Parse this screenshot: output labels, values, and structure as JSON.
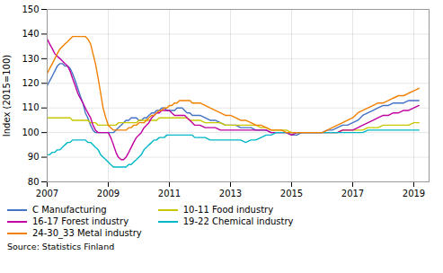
{
  "chart_data": {
    "type": "line",
    "ylabel": "Index (2015=100)",
    "source": "Source: Statistics Finland",
    "xlim": [
      2007.0,
      2019.5
    ],
    "xticks": [
      2007,
      2009,
      2011,
      2013,
      2015,
      2017,
      2019
    ],
    "ylim": [
      80,
      150
    ],
    "yticks": [
      80,
      90,
      100,
      110,
      120,
      130,
      140,
      150
    ],
    "grid": true,
    "legend": "bottom",
    "x": [
      2007.0,
      2007.08,
      2007.17,
      2007.25,
      2007.33,
      2007.42,
      2007.5,
      2007.58,
      2007.67,
      2007.75,
      2007.83,
      2007.92,
      2008.0,
      2008.08,
      2008.17,
      2008.25,
      2008.33,
      2008.42,
      2008.5,
      2008.58,
      2008.67,
      2008.75,
      2008.83,
      2008.92,
      2009.0,
      2009.08,
      2009.17,
      2009.25,
      2009.33,
      2009.42,
      2009.5,
      2009.58,
      2009.67,
      2009.75,
      2009.83,
      2009.92,
      2010.0,
      2010.08,
      2010.17,
      2010.25,
      2010.33,
      2010.42,
      2010.5,
      2010.58,
      2010.67,
      2010.75,
      2010.83,
      2010.92,
      2011.0,
      2011.08,
      2011.17,
      2011.25,
      2011.33,
      2011.42,
      2011.5,
      2011.58,
      2011.67,
      2011.75,
      2011.83,
      2011.92,
      2012.0,
      2012.17,
      2012.33,
      2012.5,
      2012.67,
      2012.83,
      2013.0,
      2013.17,
      2013.33,
      2013.5,
      2013.67,
      2013.83,
      2014.0,
      2014.17,
      2014.33,
      2014.5,
      2014.67,
      2014.83,
      2015.0,
      2015.17,
      2015.33,
      2015.5,
      2015.67,
      2015.83,
      2016.0,
      2016.17,
      2016.33,
      2016.5,
      2016.67,
      2016.83,
      2017.0,
      2017.17,
      2017.33,
      2017.5,
      2017.67,
      2017.83,
      2018.0,
      2018.17,
      2018.33,
      2018.5,
      2018.67,
      2018.83,
      2019.0,
      2019.17
    ],
    "series": [
      {
        "name": "C Manufacturing",
        "color": "#4472c4",
        "values": [
          119,
          121,
          123,
          125,
          127,
          128,
          128,
          127,
          127,
          126,
          124,
          121,
          118,
          115,
          112,
          108,
          106,
          103,
          101,
          100,
          100,
          100,
          100,
          100,
          100,
          100,
          100,
          101,
          102,
          103,
          104,
          105,
          105,
          106,
          106,
          106,
          105,
          105,
          106,
          106,
          107,
          108,
          108,
          109,
          109,
          110,
          110,
          109,
          109,
          109,
          109,
          110,
          110,
          110,
          109,
          108,
          108,
          107,
          107,
          107,
          107,
          106,
          105,
          105,
          104,
          103,
          103,
          103,
          102,
          102,
          102,
          101,
          101,
          101,
          100,
          100,
          100,
          100,
          99,
          99,
          100,
          100,
          100,
          100,
          100,
          101,
          101,
          102,
          103,
          103,
          104,
          105,
          107,
          108,
          109,
          110,
          111,
          111,
          112,
          112,
          112,
          113,
          113,
          113
        ]
      },
      {
        "name": "10-11 Food industry",
        "color": "#c8c800",
        "values": [
          106,
          106,
          106,
          106,
          106,
          106,
          106,
          106,
          106,
          106,
          105,
          105,
          105,
          105,
          105,
          105,
          105,
          104,
          104,
          104,
          103,
          103,
          103,
          103,
          103,
          103,
          103,
          103,
          104,
          104,
          104,
          104,
          104,
          104,
          104,
          104,
          105,
          105,
          105,
          105,
          105,
          105,
          105,
          105,
          106,
          106,
          106,
          106,
          106,
          106,
          106,
          106,
          106,
          106,
          106,
          106,
          105,
          105,
          105,
          105,
          105,
          104,
          104,
          104,
          104,
          103,
          103,
          103,
          103,
          103,
          103,
          103,
          102,
          102,
          101,
          101,
          101,
          101,
          100,
          100,
          100,
          100,
          100,
          100,
          100,
          100,
          100,
          100,
          101,
          101,
          101,
          101,
          101,
          102,
          102,
          102,
          103,
          103,
          103,
          103,
          103,
          103,
          104,
          104
        ]
      },
      {
        "name": "16-17 Forest industry",
        "color": "#c000a0",
        "values": [
          138,
          136,
          134,
          132,
          131,
          130,
          129,
          128,
          127,
          125,
          122,
          119,
          116,
          114,
          112,
          110,
          108,
          106,
          103,
          101,
          100,
          100,
          100,
          100,
          100,
          98,
          95,
          92,
          90,
          89,
          89,
          90,
          92,
          94,
          96,
          98,
          99,
          100,
          102,
          103,
          104,
          106,
          107,
          108,
          108,
          109,
          109,
          109,
          109,
          108,
          107,
          107,
          107,
          107,
          107,
          106,
          105,
          104,
          103,
          103,
          103,
          102,
          102,
          102,
          101,
          101,
          101,
          101,
          101,
          101,
          101,
          101,
          101,
          101,
          100,
          100,
          100,
          100,
          99,
          100,
          100,
          100,
          100,
          100,
          100,
          100,
          100,
          100,
          101,
          101,
          101,
          102,
          103,
          104,
          105,
          106,
          107,
          107,
          108,
          108,
          109,
          109,
          110,
          111
        ]
      },
      {
        "name": "19-22 Chemical industry",
        "color": "#00b8c8",
        "values": [
          91,
          91,
          92,
          92,
          93,
          93,
          94,
          95,
          96,
          96,
          97,
          97,
          97,
          97,
          97,
          97,
          96,
          96,
          95,
          94,
          93,
          91,
          90,
          89,
          88,
          87,
          86,
          86,
          86,
          86,
          86,
          86,
          87,
          87,
          88,
          89,
          90,
          91,
          93,
          94,
          95,
          96,
          97,
          97,
          98,
          98,
          98,
          99,
          99,
          99,
          99,
          99,
          99,
          99,
          99,
          99,
          99,
          99,
          98,
          98,
          98,
          98,
          97,
          97,
          97,
          97,
          97,
          97,
          97,
          96,
          97,
          97,
          98,
          99,
          99,
          100,
          100,
          100,
          100,
          100,
          100,
          100,
          100,
          100,
          100,
          100,
          100,
          100,
          100,
          100,
          100,
          100,
          100,
          101,
          101,
          101,
          101,
          101,
          101,
          101,
          101,
          101,
          101,
          101
        ]
      },
      {
        "name": "24-30_33 Metal industry",
        "color": "#f08000",
        "values": [
          124,
          126,
          128,
          130,
          132,
          134,
          135,
          136,
          137,
          138,
          139,
          139,
          139,
          139,
          139,
          139,
          138,
          136,
          132,
          128,
          122,
          116,
          110,
          106,
          103,
          102,
          101,
          101,
          101,
          101,
          101,
          101,
          102,
          102,
          103,
          103,
          104,
          104,
          104,
          105,
          106,
          107,
          107,
          108,
          109,
          109,
          110,
          110,
          111,
          111,
          112,
          112,
          113,
          113,
          113,
          113,
          113,
          112,
          112,
          112,
          112,
          111,
          110,
          109,
          108,
          107,
          107,
          106,
          105,
          105,
          104,
          103,
          103,
          102,
          101,
          101,
          101,
          100,
          100,
          100,
          100,
          100,
          100,
          100,
          100,
          101,
          102,
          103,
          104,
          105,
          106,
          108,
          109,
          110,
          111,
          112,
          112,
          113,
          114,
          115,
          115,
          116,
          117,
          118
        ]
      }
    ]
  }
}
